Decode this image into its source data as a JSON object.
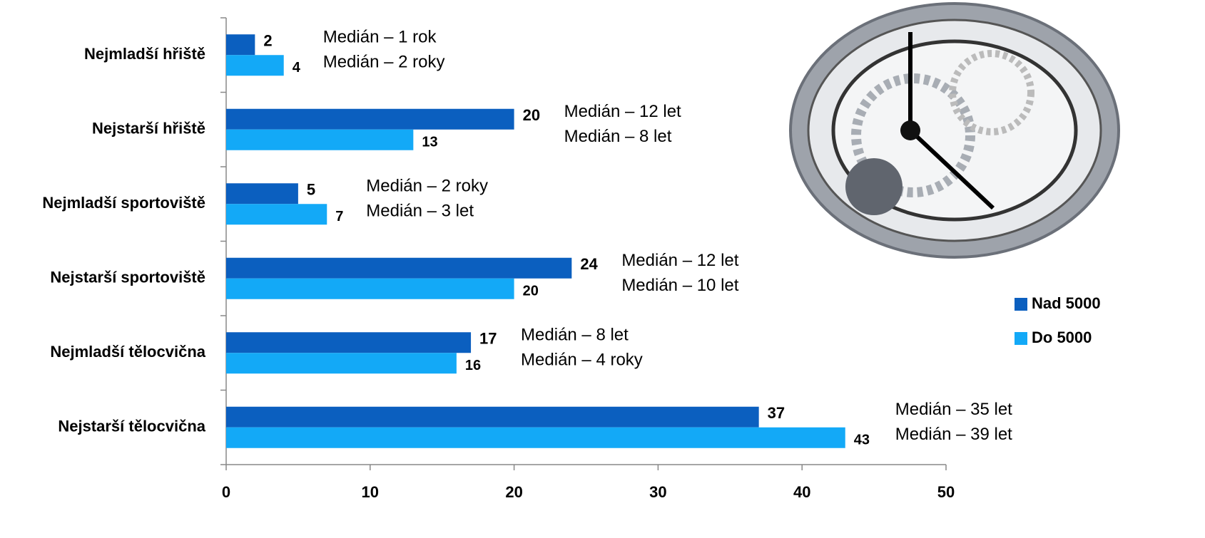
{
  "chart_data": {
    "type": "barh",
    "categories": [
      "Nejmladší hřiště",
      "Nejstarší hřiště",
      "Nejmladší sportoviště",
      "Nejstarší sportoviště",
      "Nejmladší tělocvična",
      "Nejstarší tělocvična"
    ],
    "series": [
      {
        "name": "Nad 5000",
        "color": "#0b5fbf",
        "values": [
          2,
          20,
          5,
          24,
          17,
          37
        ],
        "annotations": [
          "Medián – 1 rok",
          "Medián – 12 let",
          "Medián – 2 roky",
          "Medián – 12 let",
          "Medián – 8 let",
          "Medián – 35 let"
        ]
      },
      {
        "name": "Do 5000",
        "color": "#13a9f7",
        "values": [
          4,
          13,
          7,
          20,
          16,
          43
        ],
        "annotations": [
          "Medián – 2 roky",
          "Medián – 8 let",
          "Medián – 3 let",
          "Medián – 10 let",
          "Medián – 4 roky",
          "Medián – 39 let"
        ]
      }
    ],
    "xlim": [
      0,
      50
    ],
    "xticks": [
      0,
      10,
      20,
      30,
      40,
      50
    ],
    "legend": "right"
  }
}
